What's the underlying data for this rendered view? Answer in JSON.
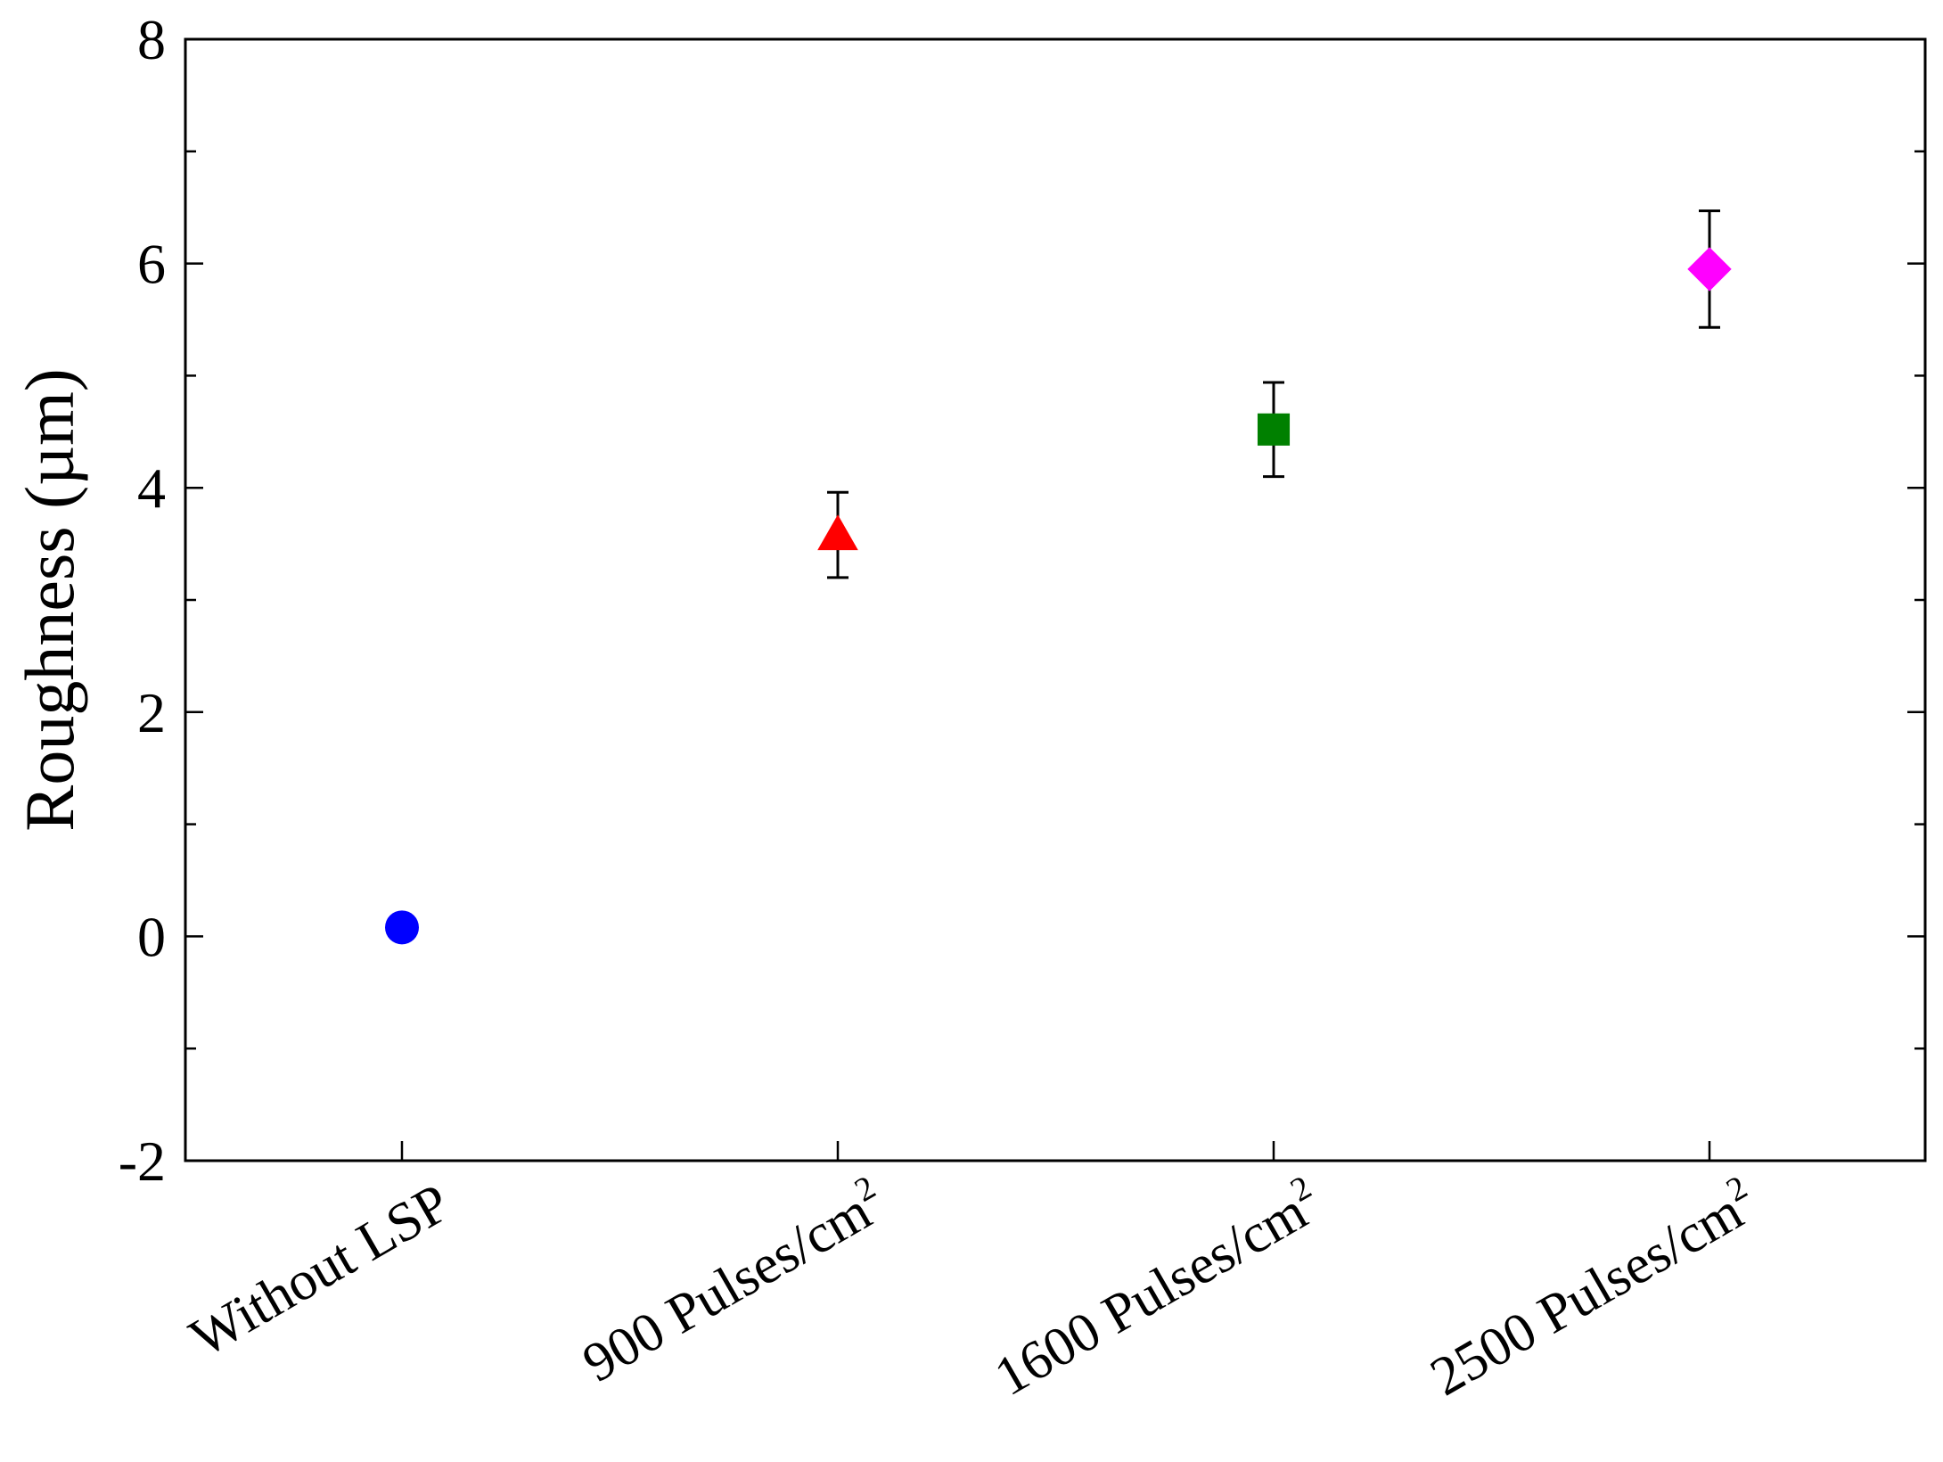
{
  "chart_data": {
    "type": "scatter",
    "title": "",
    "xlabel": "",
    "ylabel": "Roughness (µm)",
    "ylim": [
      -2,
      8
    ],
    "yticks": [
      "-2",
      "0",
      "2",
      "4",
      "6",
      "8"
    ],
    "grid": false,
    "categories": [
      {
        "base": "Without LSP",
        "sup": ""
      },
      {
        "base": "900 Pulses/cm",
        "sup": "2"
      },
      {
        "base": "1600 Pulses/cm",
        "sup": "2"
      },
      {
        "base": "2500 Pulses/cm",
        "sup": "2"
      }
    ],
    "points": [
      {
        "value": 0.08,
        "error": 0,
        "marker": "circle",
        "color": "#0000ff"
      },
      {
        "value": 3.58,
        "error": 0.38,
        "marker": "triangle",
        "color": "#ff0000"
      },
      {
        "value": 4.52,
        "error": 0.42,
        "marker": "square",
        "color": "#008000"
      },
      {
        "value": 5.95,
        "error": 0.52,
        "marker": "diamond",
        "color": "#ff00ff"
      }
    ]
  }
}
